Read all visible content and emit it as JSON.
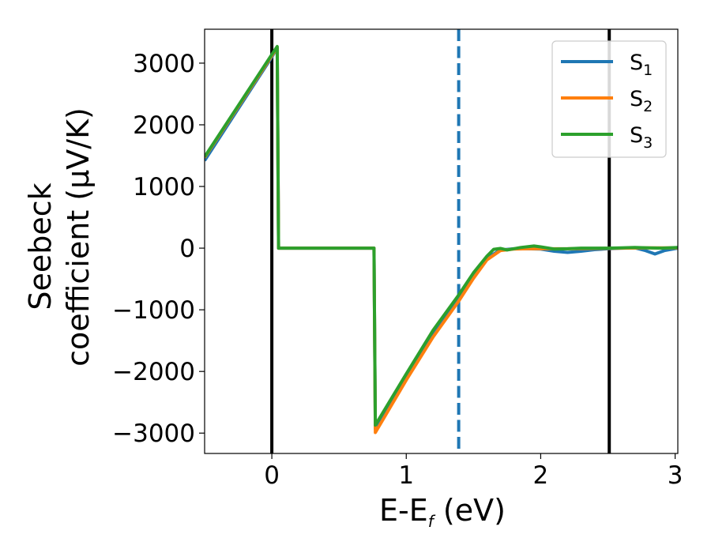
{
  "chart_data": {
    "type": "line",
    "title": "",
    "xlabel": {
      "main": "E-E",
      "sub": "f",
      "rest": " (eV)"
    },
    "ylabel": {
      "line1": "Seebeck",
      "line2": "coefficient  (μV/K)"
    },
    "xlim": [
      -0.5,
      3.02
    ],
    "ylim": [
      -3330,
      3550
    ],
    "xticks": [
      0,
      1,
      2,
      3
    ],
    "xtick_labels": [
      "0",
      "1",
      "2",
      "3"
    ],
    "yticks": [
      -3000,
      -2000,
      -1000,
      0,
      1000,
      2000,
      3000
    ],
    "ytick_labels": [
      "−3000",
      "−2000",
      "−1000",
      "0",
      "1000",
      "2000",
      "3000"
    ],
    "grid": false,
    "legend_position": "top-right",
    "vlines": [
      {
        "x": 0.0,
        "color": "#000000",
        "style": "solid"
      },
      {
        "x": 2.51,
        "color": "#000000",
        "style": "solid"
      },
      {
        "x": 1.39,
        "color": "#1f77b4",
        "style": "dashed"
      }
    ],
    "series": [
      {
        "label_main": "S",
        "label_sub": "1",
        "color": "#1f77b4",
        "points": [
          [
            -0.5,
            1420
          ],
          [
            0.0,
            3100
          ],
          [
            0.04,
            3250
          ],
          [
            0.05,
            0
          ],
          [
            0.76,
            0
          ],
          [
            0.77,
            -2930
          ],
          [
            1.0,
            -2080
          ],
          [
            1.2,
            -1390
          ],
          [
            1.39,
            -800
          ],
          [
            1.5,
            -440
          ],
          [
            1.6,
            -160
          ],
          [
            1.7,
            -30
          ],
          [
            1.8,
            -10
          ],
          [
            1.9,
            -10
          ],
          [
            2.0,
            -15
          ],
          [
            2.1,
            -50
          ],
          [
            2.2,
            -70
          ],
          [
            2.3,
            -50
          ],
          [
            2.4,
            -25
          ],
          [
            2.5,
            -10
          ],
          [
            2.6,
            0
          ],
          [
            2.7,
            5
          ],
          [
            2.78,
            -40
          ],
          [
            2.85,
            -95
          ],
          [
            2.92,
            -40
          ],
          [
            3.02,
            0
          ]
        ]
      },
      {
        "label_main": "S",
        "label_sub": "2",
        "color": "#ff7f0e",
        "points": [
          [
            -0.5,
            1470
          ],
          [
            0.0,
            3120
          ],
          [
            0.04,
            3260
          ],
          [
            0.05,
            0
          ],
          [
            0.76,
            0
          ],
          [
            0.77,
            -2990
          ],
          [
            1.0,
            -2140
          ],
          [
            1.2,
            -1440
          ],
          [
            1.39,
            -860
          ],
          [
            1.5,
            -490
          ],
          [
            1.6,
            -190
          ],
          [
            1.7,
            -40
          ],
          [
            1.8,
            -15
          ],
          [
            1.9,
            -10
          ],
          [
            2.0,
            -10
          ],
          [
            2.2,
            -10
          ],
          [
            2.4,
            -5
          ],
          [
            2.6,
            0
          ],
          [
            2.8,
            5
          ],
          [
            3.02,
            5
          ]
        ]
      },
      {
        "label_main": "S",
        "label_sub": "3",
        "color": "#2ca02c",
        "points": [
          [
            -0.5,
            1480
          ],
          [
            0.0,
            3140
          ],
          [
            0.04,
            3270
          ],
          [
            0.05,
            0
          ],
          [
            0.76,
            0
          ],
          [
            0.77,
            -2870
          ],
          [
            1.0,
            -2040
          ],
          [
            1.2,
            -1330
          ],
          [
            1.39,
            -760
          ],
          [
            1.5,
            -400
          ],
          [
            1.6,
            -130
          ],
          [
            1.65,
            -20
          ],
          [
            1.7,
            -5
          ],
          [
            1.75,
            -30
          ],
          [
            1.85,
            10
          ],
          [
            1.95,
            35
          ],
          [
            2.0,
            20
          ],
          [
            2.1,
            -15
          ],
          [
            2.2,
            -10
          ],
          [
            2.3,
            0
          ],
          [
            2.5,
            0
          ],
          [
            2.6,
            5
          ],
          [
            2.7,
            10
          ],
          [
            2.8,
            5
          ],
          [
            2.9,
            0
          ],
          [
            3.02,
            10
          ]
        ]
      }
    ]
  }
}
